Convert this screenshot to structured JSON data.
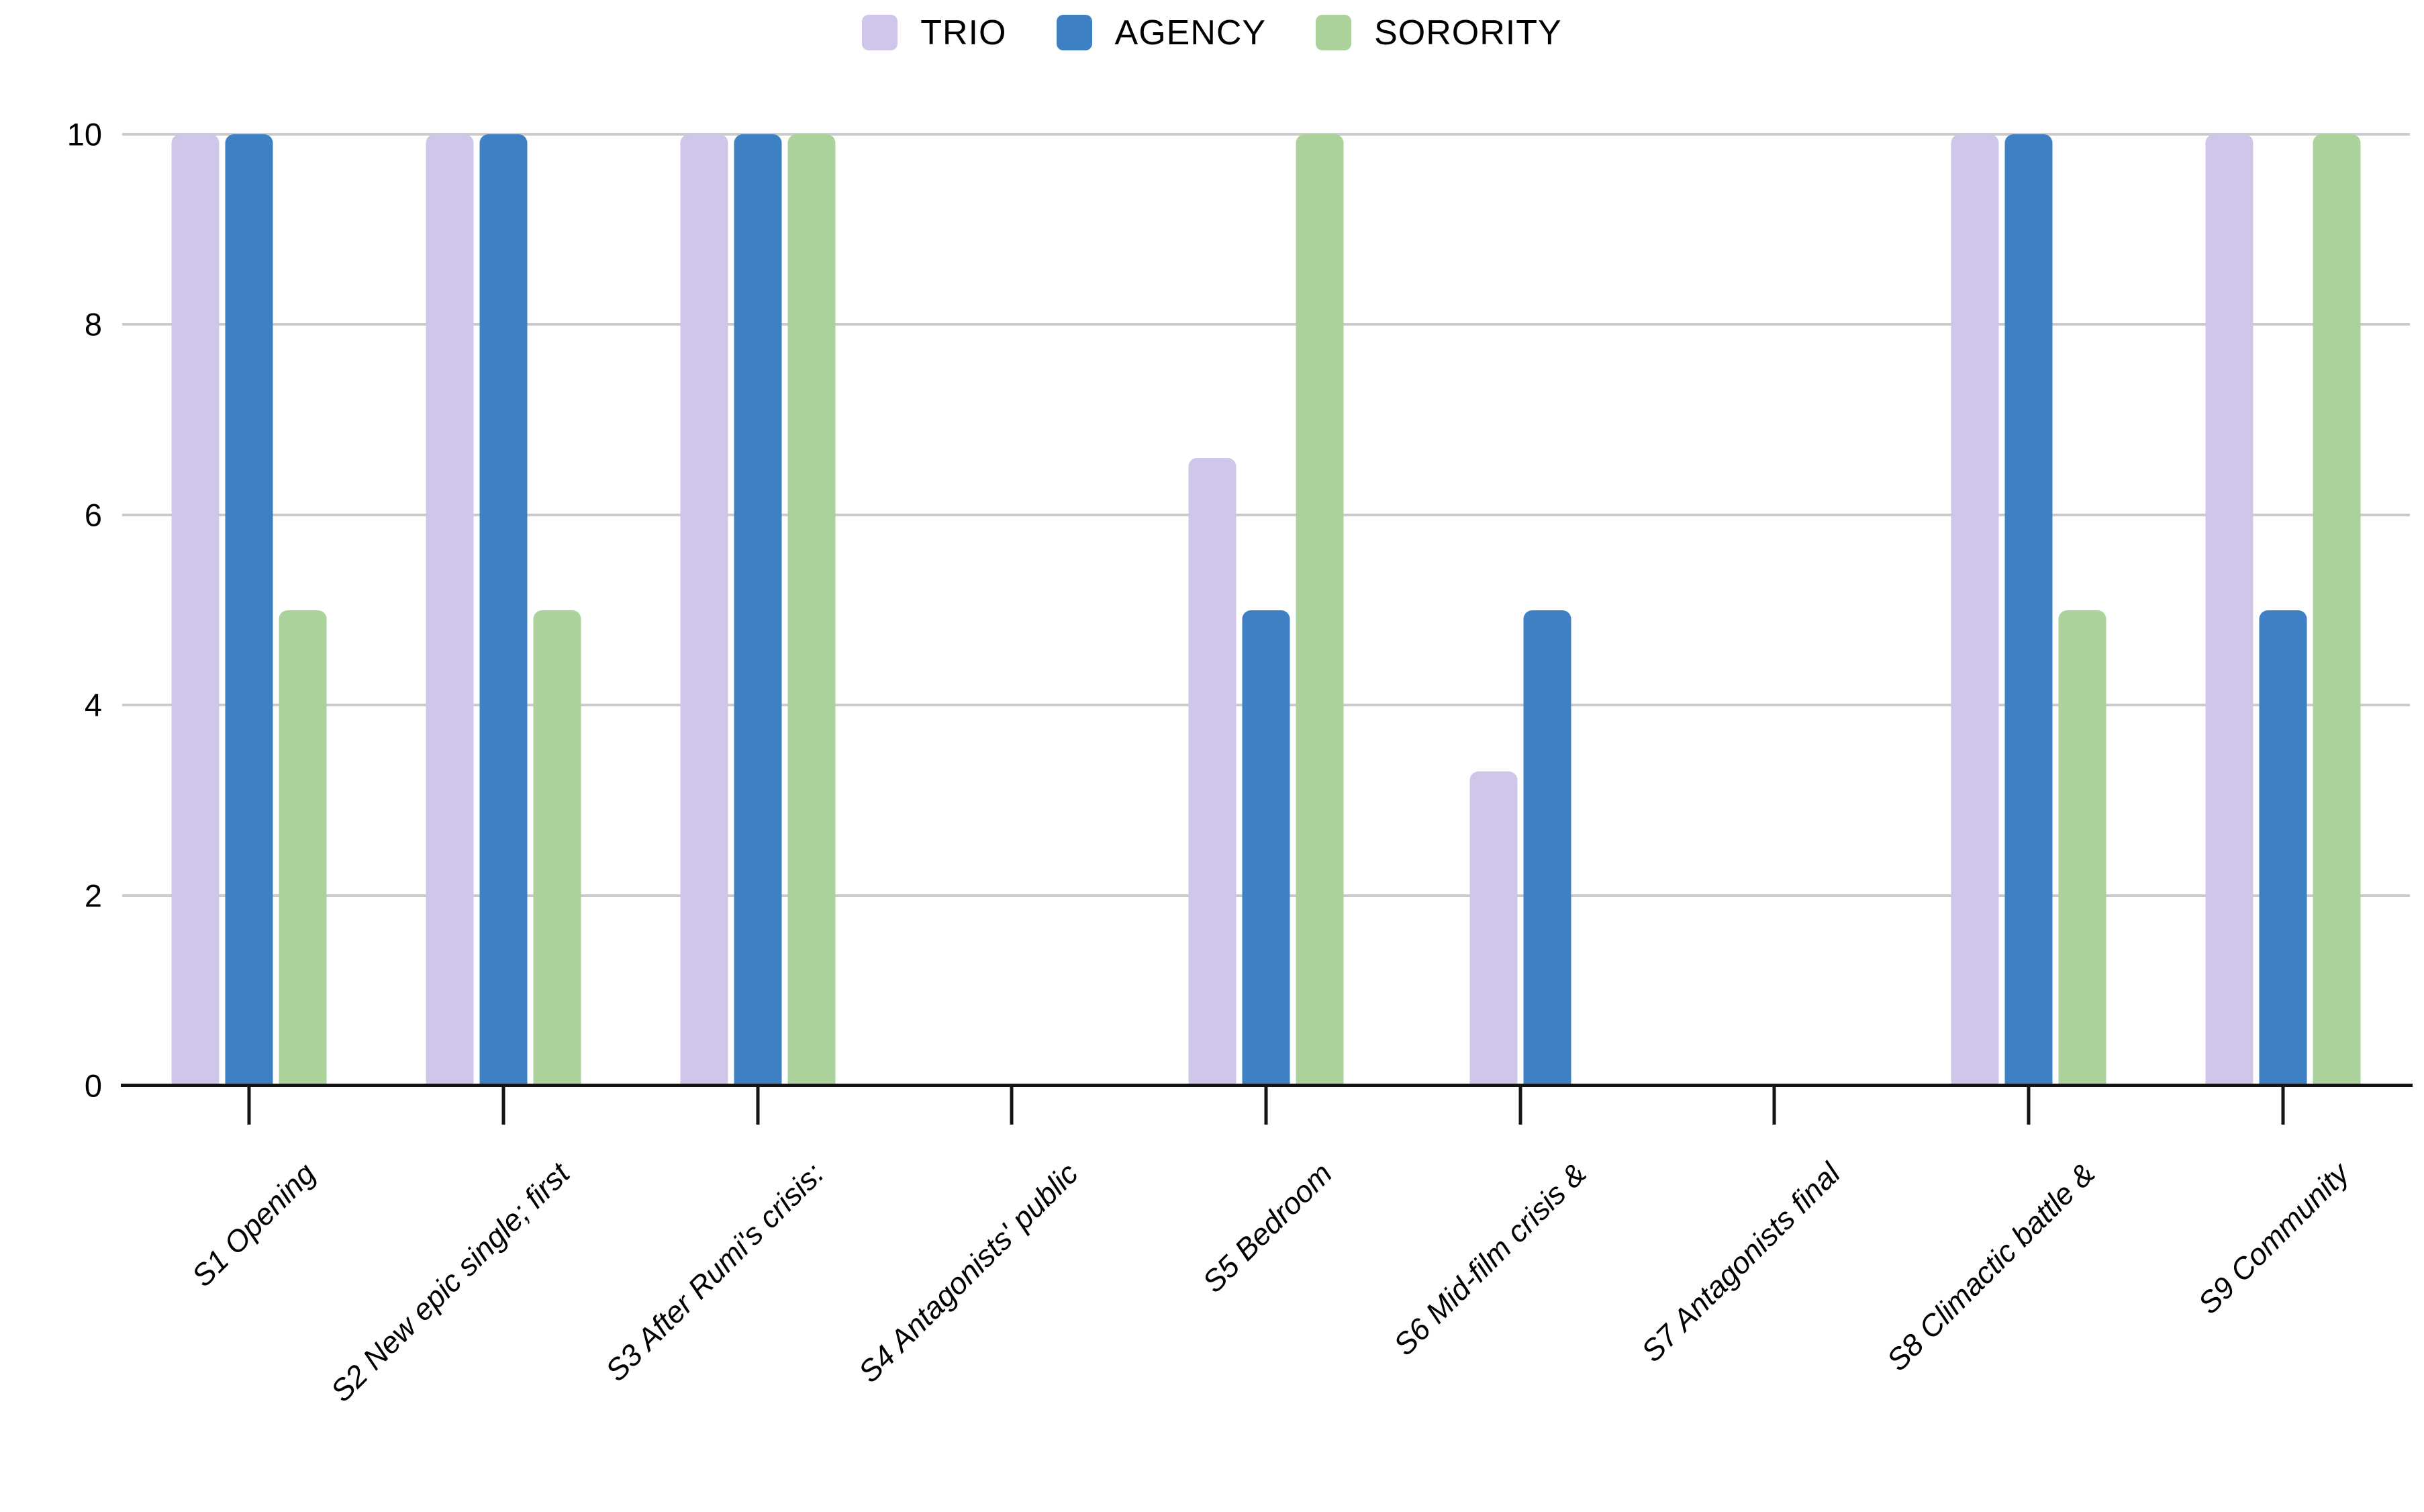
{
  "chart_data": {
    "type": "bar",
    "title": "",
    "xlabel": "",
    "ylabel": "",
    "categories": [
      "S1 Opening",
      "S2 New epic single; first",
      "S3 After Rumi's crisis:",
      "S4 Antagonists' public",
      "S5 Bedroom",
      "S6 Mid-film crisis &",
      "S7 Antagonists final",
      "S8 Climactic battle &",
      "S9 Community"
    ],
    "series": [
      {
        "name": "TRIO",
        "color": "#cfc6e9",
        "values": [
          10,
          10,
          10,
          0,
          6.6,
          3.3,
          0,
          10,
          10
        ]
      },
      {
        "name": "AGENCY",
        "color": "#3d80c3",
        "values": [
          10,
          10,
          10,
          0,
          5,
          5,
          0,
          10,
          5
        ]
      },
      {
        "name": "SORORITY",
        "color": "#abd29b",
        "values": [
          5,
          5,
          10,
          0,
          10,
          0,
          0,
          5,
          10
        ]
      }
    ],
    "ylim": [
      0,
      10
    ],
    "yticks": [
      0,
      2,
      4,
      6,
      8,
      10
    ],
    "grid": "horizontal",
    "legend_position": "top-center"
  },
  "colors": {
    "background": "#ffffff",
    "gridline": "#cbcbcb",
    "axis": "#141414",
    "text": "#000000"
  }
}
